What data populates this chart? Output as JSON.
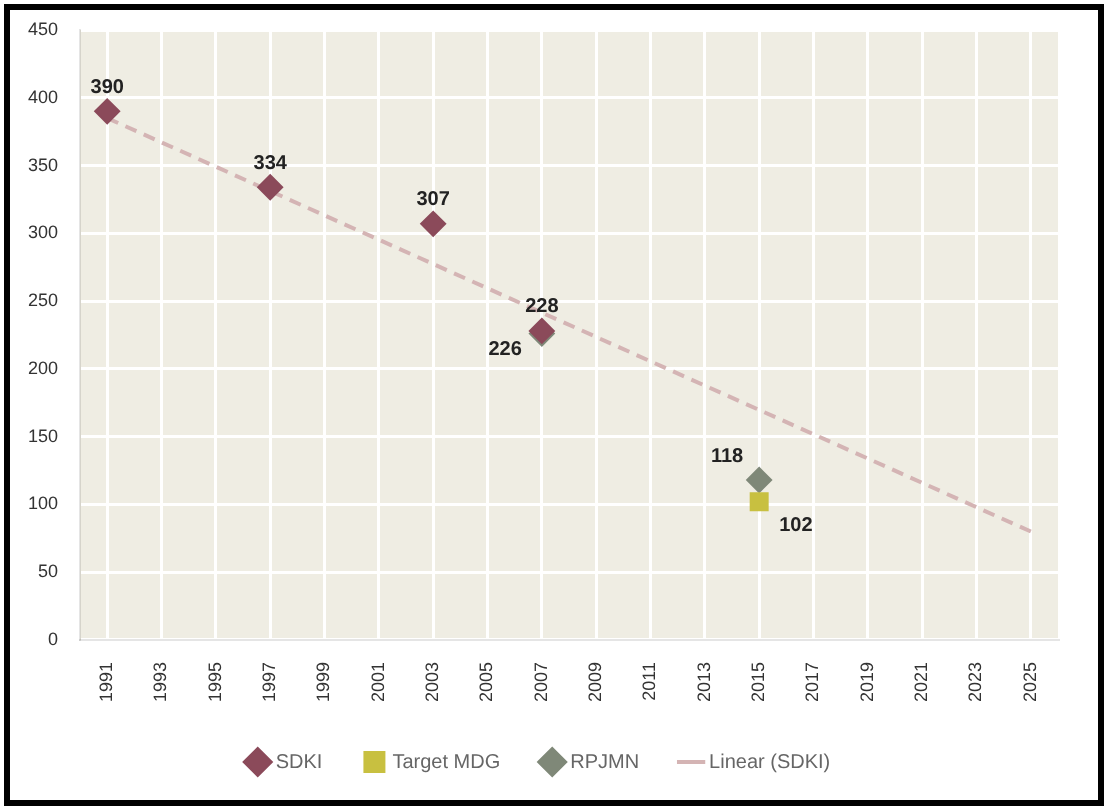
{
  "chart_data": {
    "type": "scatter",
    "categories": [
      "1991",
      "1993",
      "1995",
      "1997",
      "1999",
      "2001",
      "2003",
      "2005",
      "2007",
      "2009",
      "2011",
      "2013",
      "2015",
      "2017",
      "2019",
      "2021",
      "2023",
      "2025"
    ],
    "series": [
      {
        "name": "SDKI",
        "type": "scatter",
        "marker": "diamond",
        "color": "#8b4a5a",
        "values": [
          390,
          null,
          null,
          334,
          null,
          null,
          307,
          null,
          228,
          null,
          null,
          null,
          null,
          null,
          null,
          null,
          null,
          null
        ],
        "value_labels": [
          "390",
          null,
          null,
          "334",
          null,
          null,
          "307",
          null,
          "228",
          null,
          null,
          null,
          null,
          null,
          null,
          null,
          null,
          null
        ]
      },
      {
        "name": "Target MDG",
        "type": "scatter",
        "marker": "square",
        "color": "#c8c040",
        "values": [
          null,
          null,
          null,
          null,
          null,
          null,
          null,
          null,
          null,
          null,
          null,
          null,
          102,
          null,
          null,
          null,
          null,
          null
        ],
        "value_labels": [
          null,
          null,
          null,
          null,
          null,
          null,
          null,
          null,
          null,
          null,
          null,
          null,
          "102",
          null,
          null,
          null,
          null,
          null
        ]
      },
      {
        "name": "RPJMN",
        "type": "scatter",
        "marker": "diamond",
        "color": "#7f8878",
        "values": [
          null,
          null,
          null,
          null,
          null,
          null,
          null,
          null,
          226,
          null,
          null,
          null,
          118,
          null,
          null,
          null,
          null,
          null
        ],
        "value_labels": [
          null,
          null,
          null,
          null,
          null,
          null,
          null,
          null,
          "226",
          null,
          null,
          null,
          "118",
          null,
          null,
          null,
          null,
          null
        ]
      },
      {
        "name": "Linear (SDKI)",
        "type": "line",
        "line_style": "dashed",
        "marker": "none",
        "color": "#d4b4b4",
        "values": [
          385,
          null,
          null,
          null,
          null,
          null,
          null,
          null,
          null,
          null,
          null,
          null,
          null,
          null,
          null,
          null,
          null,
          80
        ]
      }
    ],
    "ylim": [
      0,
      450
    ],
    "yticks": [
      0,
      50,
      100,
      150,
      200,
      250,
      300,
      350,
      400,
      450
    ],
    "grid": true,
    "legend": "bottom"
  }
}
